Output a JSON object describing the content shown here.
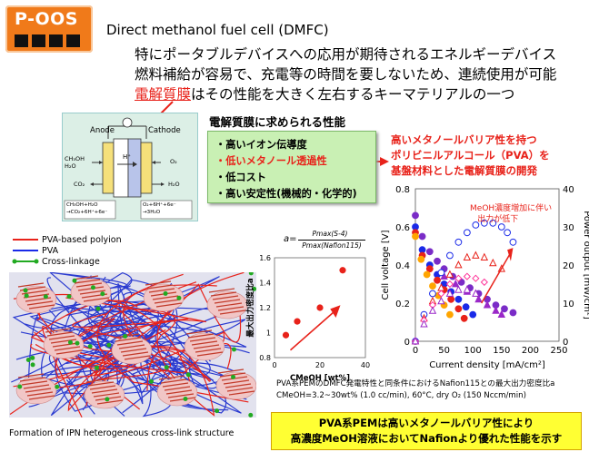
{
  "badge": {
    "text": "P-OOS"
  },
  "header": {
    "title": "Direct methanol fuel cell (DMFC)",
    "line1": "特にポータブルデバイスへの応用が期待されるエネルギーデバイス",
    "line2": "燃料補給が容易で、充電等の時間を要しないため、連続使用が可能",
    "line3a": "電解質膜",
    "line3b": "はその性能を大きく左右するキーマテリアルの一つ"
  },
  "cell_diagram": {
    "anode": "Anode",
    "cathode": "Cathode",
    "hplus": "H⁺",
    "in_left": "CH₃OH\nH₂O",
    "o2_right": "O₂",
    "co2": "CO₂",
    "h2o": "H₂O",
    "anode_eq": "CH₃OH+H₂O\n→CO₂+6H⁺+6e⁻",
    "cathode_eq": "O₂+6H⁺+6e⁻\n→3H₂O"
  },
  "properties": {
    "title": "電解質膜に求められる性能",
    "items": [
      {
        "text": "・高いイオン伝導度",
        "color": "#000000"
      },
      {
        "text": "・低いメタノール透過性",
        "color": "#e8221a"
      },
      {
        "text": "・低コスト",
        "color": "#000000"
      },
      {
        "text": "・高い安定性(機械的・化学的)",
        "color": "#000000"
      }
    ]
  },
  "pva_development": {
    "line1": "高いメタノールバリア性を持つ",
    "line2": "ポリビニルアルコール（PVA）を",
    "line3": "基盤材料とした電解質膜の開発"
  },
  "legend": {
    "items": [
      {
        "label": "PVA-based polyion",
        "color": "#e8221a"
      },
      {
        "label": "PVA",
        "color": "#1a2ae8"
      },
      {
        "label": "Cross-linkage",
        "color": "#22aa22"
      }
    ]
  },
  "ipn_caption": "Formation of IPN heterogeneous cross-link structure",
  "small_chart": {
    "formula_lhs": "a=",
    "formula_num": "Pmax(S-4)",
    "formula_den": "Pmax(Nafion115)",
    "ylabel": "最大出力密度比a",
    "xlabel": "CMeOH [wt%]",
    "y_ticks": [
      "1.6",
      "1.4",
      "1.2",
      "1",
      "0.8"
    ],
    "x_ticks": [
      "0",
      "20",
      "40"
    ]
  },
  "chart_data": [
    {
      "type": "scatter",
      "xlabel": "CMeOH [wt%]",
      "ylabel": "最大出力密度比a",
      "xlim": [
        0,
        40
      ],
      "ylim": [
        0.8,
        1.6
      ],
      "points": [
        {
          "x": 5,
          "y": 0.98
        },
        {
          "x": 10,
          "y": 1.09
        },
        {
          "x": 20,
          "y": 1.2
        },
        {
          "x": 30,
          "y": 1.5
        }
      ],
      "color": "#e8221a"
    },
    {
      "type": "scatter",
      "xlabel": "Current density [mA/cm²]",
      "ylabel": "Cell voltage [V]",
      "y2label": "Power output [mW/cm²]",
      "xlim": [
        0,
        250
      ],
      "ylim": [
        0,
        0.8
      ],
      "y2lim": [
        0,
        40
      ],
      "x_ticks": [
        "0",
        "50",
        "100",
        "150",
        "200",
        "250"
      ],
      "y_ticks": [
        "0",
        "0.2",
        "0.4",
        "0.6",
        "0.8"
      ],
      "y2_ticks": [
        "0",
        "10",
        "20",
        "30",
        "40"
      ],
      "annotation": "MeOH濃度増加に伴い\n出力が低下",
      "series": [
        {
          "color": "#7a2cc7",
          "marker": "circle",
          "filled": true,
          "voltage": [
            [
              0,
              0.66
            ],
            [
              12,
              0.55
            ],
            [
              25,
              0.47
            ],
            [
              38,
              0.42
            ],
            [
              50,
              0.38
            ],
            [
              65,
              0.34
            ],
            [
              80,
              0.31
            ],
            [
              95,
              0.28
            ],
            [
              110,
              0.25
            ],
            [
              125,
              0.22
            ],
            [
              140,
              0.19
            ],
            [
              155,
              0.17
            ],
            [
              170,
              0.15
            ]
          ]
        },
        {
          "color": "#1a2ae8",
          "marker": "circle",
          "filled": true,
          "voltage": [
            [
              0,
              0.6
            ],
            [
              12,
              0.48
            ],
            [
              25,
              0.4
            ],
            [
              38,
              0.35
            ],
            [
              50,
              0.3
            ],
            [
              62,
              0.26
            ],
            [
              75,
              0.22
            ],
            [
              88,
              0.18
            ],
            [
              100,
              0.14
            ]
          ]
        },
        {
          "color": "#e8221a",
          "marker": "circle",
          "filled": true,
          "voltage": [
            [
              0,
              0.57
            ],
            [
              12,
              0.45
            ],
            [
              25,
              0.38
            ],
            [
              38,
              0.32
            ],
            [
              50,
              0.27
            ],
            [
              62,
              0.22
            ],
            [
              75,
              0.17
            ],
            [
              85,
              0.12
            ]
          ]
        },
        {
          "color": "#ffa500",
          "marker": "circle",
          "filled": true,
          "voltage": [
            [
              0,
              0.55
            ],
            [
              10,
              0.43
            ],
            [
              20,
              0.35
            ],
            [
              30,
              0.29
            ],
            [
              40,
              0.24
            ],
            [
              50,
              0.19
            ],
            [
              60,
              0.14
            ]
          ]
        },
        {
          "color": "#9a28c8",
          "marker": "triangle",
          "filled": true,
          "voltage": [
            [
              50,
              0.34
            ],
            [
              70,
              0.3
            ],
            [
              90,
              0.26
            ],
            [
              110,
              0.22
            ],
            [
              125,
              0.19
            ],
            [
              140,
              0.16
            ],
            [
              150,
              0.14
            ]
          ]
        },
        {
          "color": "#1a2ae8",
          "marker": "circle",
          "filled": false,
          "power": [
            [
              0,
              0
            ],
            [
              15,
              7
            ],
            [
              30,
              12.5
            ],
            [
              45,
              18
            ],
            [
              60,
              22.5
            ],
            [
              75,
              26
            ],
            [
              90,
              28.5
            ],
            [
              105,
              30.5
            ],
            [
              120,
              31
            ],
            [
              135,
              31
            ],
            [
              150,
              30
            ],
            [
              160,
              28.5
            ],
            [
              170,
              26
            ]
          ]
        },
        {
          "color": "#e8221a",
          "marker": "triangle",
          "filled": false,
          "power": [
            [
              0,
              0
            ],
            [
              15,
              6
            ],
            [
              30,
              10.5
            ],
            [
              45,
              14
            ],
            [
              60,
              17.5
            ],
            [
              75,
              20
            ],
            [
              90,
              22
            ],
            [
              105,
              22.5
            ],
            [
              120,
              22
            ],
            [
              135,
              20.5
            ],
            [
              150,
              19
            ]
          ]
        },
        {
          "color": "#ff3399",
          "marker": "diamond",
          "filled": false,
          "power": [
            [
              0,
              0
            ],
            [
              15,
              5.5
            ],
            [
              30,
              9.5
            ],
            [
              45,
              12.5
            ],
            [
              60,
              15
            ],
            [
              75,
              16.5
            ],
            [
              90,
              17
            ],
            [
              105,
              16.5
            ],
            [
              120,
              15.5
            ]
          ]
        },
        {
          "color": "#9a28c8",
          "marker": "triangle",
          "filled": false,
          "power": [
            [
              0,
              0
            ],
            [
              15,
              4.5
            ],
            [
              30,
              8
            ],
            [
              45,
              10.5
            ],
            [
              60,
              12.5
            ],
            [
              75,
              13.5
            ],
            [
              90,
              13.5
            ],
            [
              105,
              12.5
            ]
          ]
        }
      ]
    }
  ],
  "big_chart": {
    "xlabel": "Current density [mA/cm²]",
    "ylabel": "Cell voltage [V]",
    "y2label": "Power output [mW/cm²]",
    "annotation_l1": "MeOH濃度増加に伴い",
    "annotation_l2": "出力が低下"
  },
  "caption": {
    "line1": "PVA系PEMのDMFC発電特性と同条件におけるNafion115との最大出力密度比a",
    "line2": "CMeOH=3.2~30wt% (1.0 cc/min), 60°C, dry O₂ (150 Nccm/min)"
  },
  "conclusion": {
    "line1": "PVA系PEMは高いメタノールバリア性により",
    "line2": "高濃度MeOH溶液においてNafionより優れた性能を示す"
  }
}
